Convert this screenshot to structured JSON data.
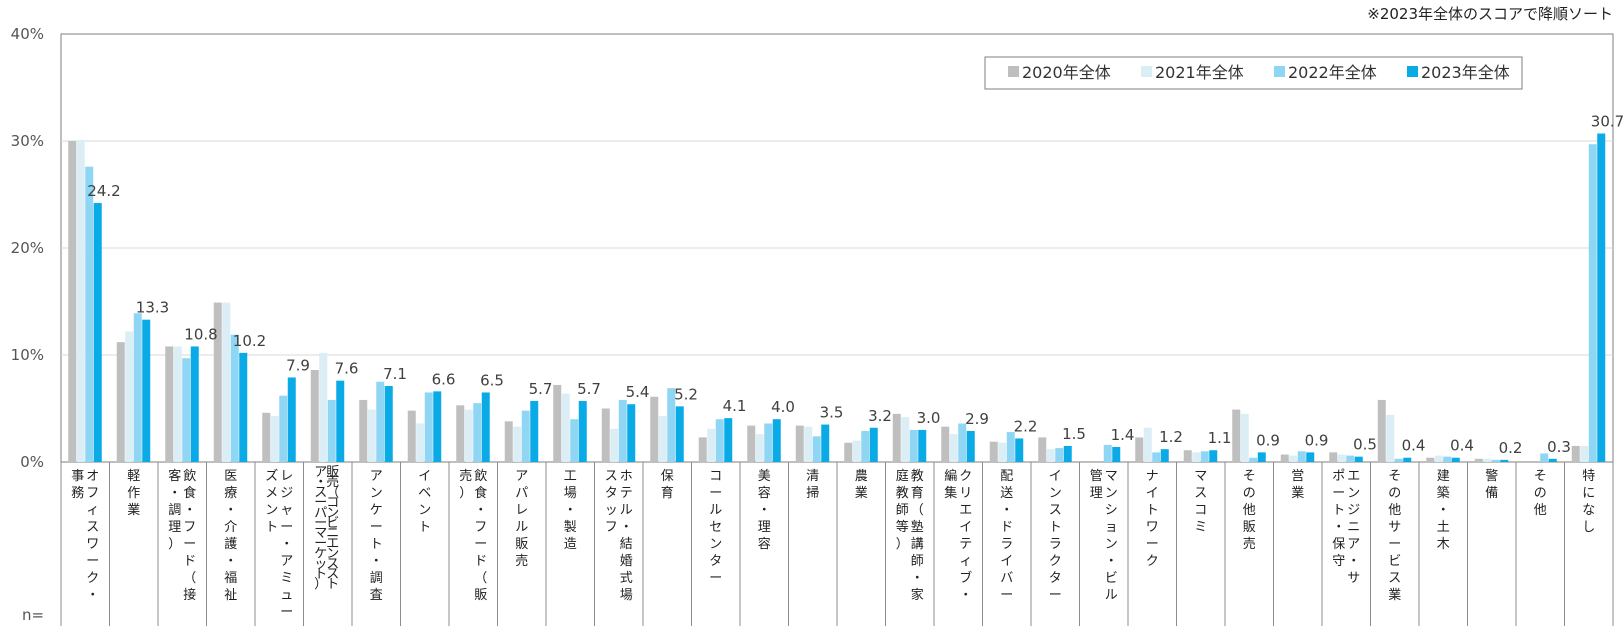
{
  "note": "※2023年全体のスコアで降順ソート",
  "n_label": "n=",
  "chart_data": {
    "type": "bar",
    "ylim": [
      0,
      40
    ],
    "yticks": [
      "0%",
      "10%",
      "20%",
      "30%",
      "40%"
    ],
    "legend_position": "top-right",
    "grid": true,
    "categories": [
      [
        "オフィスワーク・",
        "事務"
      ],
      [
        "軽作業"
      ],
      [
        "飲食・フード（接",
        "客・調理）"
      ],
      [
        "医療・介護・福祉"
      ],
      [
        "レジャー・アミュー",
        "ズメント"
      ],
      [
        "販売（コンビニエンスストア・スーパーマーケット）"
      ],
      [
        "アンケート・調査"
      ],
      [
        "イベント"
      ],
      [
        "飲食・フード（販",
        "売）"
      ],
      [
        "アパレル販売"
      ],
      [
        "工場・製造"
      ],
      [
        "ホテル・結婚式場",
        "スタッフ"
      ],
      [
        "保育"
      ],
      [
        "コールセンター"
      ],
      [
        "美容・理容"
      ],
      [
        "清掃"
      ],
      [
        "農業"
      ],
      [
        "教育（塾講師・家",
        "庭教師等）"
      ],
      [
        "クリエイティブ・",
        "編集"
      ],
      [
        "配送・ドライバー"
      ],
      [
        "インストラクター"
      ],
      [
        "マンション・ビル",
        "管理"
      ],
      [
        "ナイトワーク"
      ],
      [
        "マスコミ"
      ],
      [
        "その他販売"
      ],
      [
        "営業"
      ],
      [
        "エンジニア・サ",
        "ポート・保守"
      ],
      [
        "その他サービス業"
      ],
      [
        "建築・土木"
      ],
      [
        "警備"
      ],
      [
        "その他"
      ],
      [
        "特になし"
      ]
    ],
    "series": [
      {
        "name": "2020年全体",
        "color": "#bfbfbf",
        "values": [
          30.0,
          11.2,
          10.8,
          14.9,
          4.6,
          8.6,
          5.8,
          4.8,
          5.3,
          3.8,
          7.2,
          5.0,
          6.1,
          2.3,
          3.4,
          3.4,
          1.8,
          4.5,
          3.3,
          1.9,
          2.3,
          0.0,
          2.3,
          1.1,
          4.9,
          0.7,
          0.9,
          5.8,
          0.4,
          0.3,
          0.0,
          1.5
        ]
      },
      {
        "name": "2021年全体",
        "color": "#dbeef5",
        "values": [
          30.1,
          12.2,
          10.8,
          14.9,
          4.3,
          10.2,
          4.9,
          3.6,
          4.9,
          3.3,
          6.4,
          3.1,
          4.3,
          3.1,
          2.6,
          3.3,
          2.0,
          4.2,
          2.6,
          1.8,
          1.2,
          0.0,
          3.2,
          0.9,
          4.5,
          0.6,
          0.7,
          4.4,
          0.6,
          0.3,
          0.0,
          1.5
        ]
      },
      {
        "name": "2022年全体",
        "color": "#8fd6f5",
        "values": [
          27.6,
          13.9,
          9.7,
          11.9,
          6.2,
          5.8,
          7.5,
          6.5,
          5.5,
          4.8,
          4.0,
          5.8,
          6.9,
          4.0,
          3.6,
          2.4,
          2.9,
          3.0,
          3.6,
          2.8,
          1.3,
          1.6,
          0.9,
          1.0,
          0.4,
          1.0,
          0.6,
          0.3,
          0.5,
          0.2,
          0.8,
          29.7
        ]
      },
      {
        "name": "2023年全体",
        "color": "#0aaae6",
        "values": [
          24.2,
          13.3,
          10.8,
          10.2,
          7.9,
          7.6,
          7.1,
          6.6,
          6.5,
          5.7,
          5.7,
          5.4,
          5.2,
          4.1,
          4.0,
          3.5,
          3.2,
          3.0,
          2.9,
          2.2,
          1.5,
          1.4,
          1.2,
          1.1,
          0.9,
          0.9,
          0.5,
          0.4,
          0.4,
          0.2,
          0.3,
          30.7
        ]
      }
    ],
    "data_labels": [
      "24.2",
      "13.3",
      "10.8",
      "10.2",
      "7.9",
      "7.6",
      "7.1",
      "6.6",
      "6.5",
      "5.7",
      "5.7",
      "5.4",
      "5.2",
      "4.1",
      "4.0",
      "3.5",
      "3.2",
      "3.0",
      "2.9",
      "2.2",
      "1.5",
      "1.4",
      "1.2",
      "1.1",
      "0.9",
      "0.9",
      "0.5",
      "0.4",
      "0.4",
      "0.2",
      "0.3",
      "30.7"
    ]
  }
}
